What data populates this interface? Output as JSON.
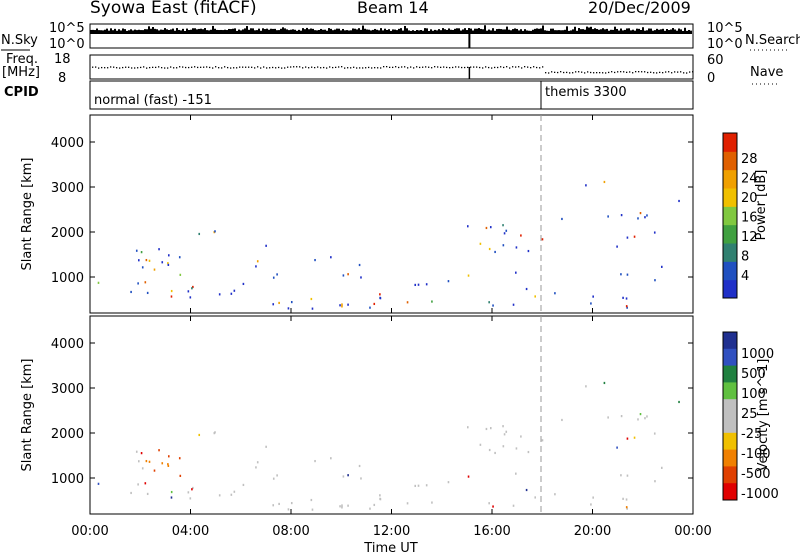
{
  "header": {
    "station": "Syowa East (fitACF)",
    "beam": "Beam 14",
    "date": "20/Dec/2009"
  },
  "top_panels": {
    "nsky_label": "N.Sky",
    "nsearch_label": "N.Search",
    "nsky_ticks": [
      "10^5",
      "10^0"
    ],
    "nsearch_ticks": [
      "10^5",
      "10^0"
    ],
    "freq_label": "Freq.",
    "freq_unit": "[MHz]",
    "freq_ticks": [
      "18",
      "8"
    ],
    "nave_label": "Nave",
    "nave_ticks": [
      "60",
      "0"
    ],
    "cpid_label": "CPID",
    "cpid_segments": [
      "normal (fast) -151",
      "themis 3300"
    ]
  },
  "colors": {
    "power_scale": [
      "#2030c8",
      "#2050c0",
      "#308070",
      "#40a040",
      "#80c840",
      "#f0c000",
      "#f0a000",
      "#e06000",
      "#e02000"
    ],
    "velocity_scale": [
      "#203090",
      "#3050c0",
      "#208040",
      "#60c040",
      "#c0c0c0",
      "#c0c0c0",
      "#f0c000",
      "#f08000",
      "#e04000",
      "#e00000"
    ],
    "nsky": "#000000"
  },
  "chart_data": [
    {
      "type": "heatmap",
      "panel": "power",
      "ylabel": "Slant Range [km]",
      "yticks": [
        "1000",
        "2000",
        "3000",
        "4000"
      ],
      "ylim": [
        200,
        4600
      ],
      "colorbar_label": "Power [dB]",
      "colorbar_ticks": [
        "4",
        "8",
        "12",
        "16",
        "20",
        "24",
        "28"
      ],
      "colorbar_range": [
        0,
        30
      ]
    },
    {
      "type": "heatmap",
      "panel": "velocity",
      "ylabel": "Slant Range [km]",
      "yticks": [
        "1000",
        "2000",
        "3000",
        "4000"
      ],
      "ylim": [
        200,
        4600
      ],
      "colorbar_label": "Velocity [m s^-1]",
      "colorbar_ticks": [
        "1000",
        "500",
        "100",
        "25",
        "-25",
        "-100",
        "-500",
        "-1000"
      ]
    }
  ],
  "x_axis": {
    "label": "Time UT",
    "ticks": [
      "00:00",
      "04:00",
      "08:00",
      "12:00",
      "16:00",
      "20:00",
      "00:00"
    ],
    "range_hours": [
      0,
      24
    ],
    "mode_change_hour": 18
  }
}
